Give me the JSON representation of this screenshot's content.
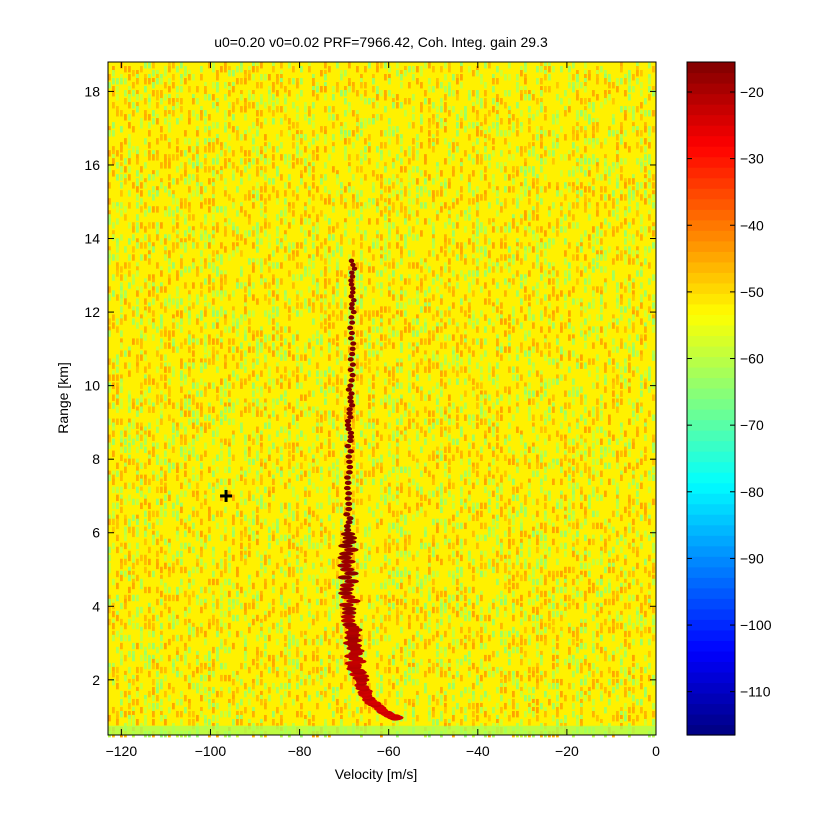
{
  "chart_data": {
    "type": "heatmap",
    "title": "u0=0.20 v0=0.02 PRF=7966.42, Coh. Integ. gain 29.3",
    "xlabel": "Velocity [m/s]",
    "ylabel": "Range  [km]",
    "xlim": [
      -123,
      0
    ],
    "ylim": [
      0.5,
      18.8
    ],
    "x_ticks": [
      -120,
      -100,
      -80,
      -60,
      -40,
      -20,
      0
    ],
    "y_ticks": [
      2,
      4,
      6,
      8,
      10,
      12,
      14,
      16,
      18
    ],
    "colormap": "jet",
    "colorbar": {
      "clim": [
        -116.5,
        -15.5
      ],
      "ticks": [
        -20,
        -30,
        -40,
        -50,
        -60,
        -70,
        -80,
        -90,
        -100,
        -110
      ]
    },
    "background_level_db": -52,
    "noise_floor_band": {
      "range_max_km": 0.75,
      "level_db": -62
    },
    "target_track": {
      "peak_level_db": -25,
      "points": [
        {
          "velocity": -58,
          "range": 0.95
        },
        {
          "velocity": -61,
          "range": 1.1
        },
        {
          "velocity": -64,
          "range": 1.4
        },
        {
          "velocity": -66,
          "range": 1.8
        },
        {
          "velocity": -67.5,
          "range": 2.5
        },
        {
          "velocity": -68.5,
          "range": 3.5
        },
        {
          "velocity": -69,
          "range": 5
        },
        {
          "velocity": -69,
          "range": 6.5
        },
        {
          "velocity": -68.8,
          "range": 8.5
        },
        {
          "velocity": -68.5,
          "range": 10
        },
        {
          "velocity": -68.2,
          "range": 12
        },
        {
          "velocity": -68,
          "range": 13.5
        }
      ]
    },
    "marker": {
      "symbol": "+",
      "velocity": -96.5,
      "range": 7.0
    }
  }
}
